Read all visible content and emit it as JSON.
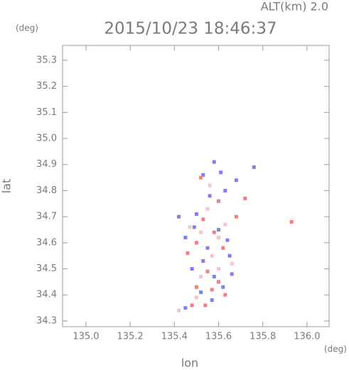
{
  "chart_data": {
    "type": "scatter",
    "title": "2015/10/23 18:46:37",
    "subtitle": "ALT(km) 2.0",
    "x_label": "lon",
    "y_label": "lat",
    "x_unit": "(deg)",
    "y_unit": "(deg)",
    "xlim": [
      134.894,
      136.1
    ],
    "ylim": [
      34.278,
      35.357
    ],
    "xticks": [
      {
        "value": 135,
        "label": "135.0"
      },
      135.2,
      135.4,
      135.6,
      135.8,
      {
        "value": 136,
        "label": "136.0"
      }
    ],
    "yticks": [
      34.3,
      34.4,
      34.5,
      34.6,
      34.7,
      34.8,
      34.9,
      {
        "value": 35,
        "label": "35.0"
      },
      35.1,
      35.2,
      35.3
    ],
    "grid": false,
    "series": [
      {
        "color": "#7f7ff0",
        "x": [
          135.58,
          135.61,
          135.53,
          135.68,
          135.76,
          135.56,
          135.63,
          135.49,
          135.45,
          135.6,
          135.55,
          135.65,
          135.48,
          135.58,
          135.62,
          135.52,
          135.57,
          135.45,
          135.66,
          135.42,
          135.5,
          135.64,
          135.53
        ],
        "y": [
          34.91,
          34.87,
          34.86,
          34.84,
          34.89,
          34.78,
          34.8,
          34.66,
          34.62,
          34.65,
          34.58,
          34.55,
          34.5,
          34.47,
          34.43,
          34.41,
          34.38,
          34.35,
          34.48,
          34.7,
          34.71,
          34.61,
          34.53
        ]
      },
      {
        "color": "#f07f86",
        "x": [
          135.52,
          135.6,
          135.72,
          135.53,
          135.58,
          135.5,
          135.62,
          135.55,
          135.6,
          135.5,
          135.54,
          135.48,
          135.63,
          135.68,
          135.93,
          135.46,
          135.57
        ],
        "y": [
          34.85,
          34.76,
          34.77,
          34.69,
          34.64,
          34.6,
          34.58,
          34.49,
          34.45,
          34.43,
          34.36,
          34.36,
          34.4,
          34.7,
          34.68,
          34.56,
          34.42
        ]
      },
      {
        "color": "#f5c4c4",
        "x": [
          135.55,
          135.52,
          135.6,
          135.57,
          135.52,
          135.6,
          135.5,
          135.42,
          135.47,
          135.63,
          135.56,
          135.66
        ],
        "y": [
          34.73,
          34.64,
          34.62,
          34.55,
          34.47,
          34.5,
          34.39,
          34.34,
          34.66,
          34.67,
          34.82,
          34.52
        ]
      }
    ]
  }
}
